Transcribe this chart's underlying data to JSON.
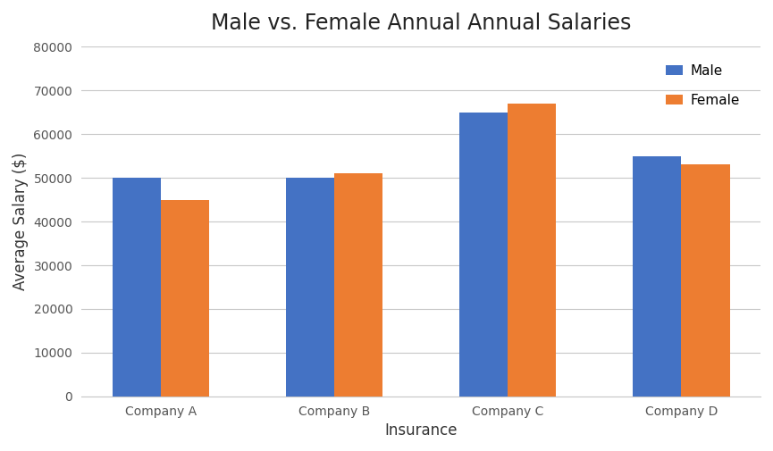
{
  "title": "Male vs. Female Annual Annual Salaries",
  "xlabel": "Insurance",
  "ylabel": "Average Salary ($)",
  "categories": [
    "Company A",
    "Company B",
    "Company C",
    "Company D"
  ],
  "series": [
    {
      "label": "Male",
      "values": [
        50000,
        50000,
        65000,
        55000
      ],
      "color": "#4472C4"
    },
    {
      "label": "Female",
      "values": [
        45000,
        51000,
        67000,
        53000
      ],
      "color": "#ED7D31"
    }
  ],
  "ylim": [
    0,
    80000
  ],
  "yticks": [
    0,
    10000,
    20000,
    30000,
    40000,
    50000,
    60000,
    70000,
    80000
  ],
  "bar_width": 0.28,
  "background_color": "#FFFFFF",
  "grid_color": "#C8C8C8",
  "title_fontsize": 17,
  "axis_label_fontsize": 12,
  "tick_fontsize": 10,
  "legend_fontsize": 11
}
